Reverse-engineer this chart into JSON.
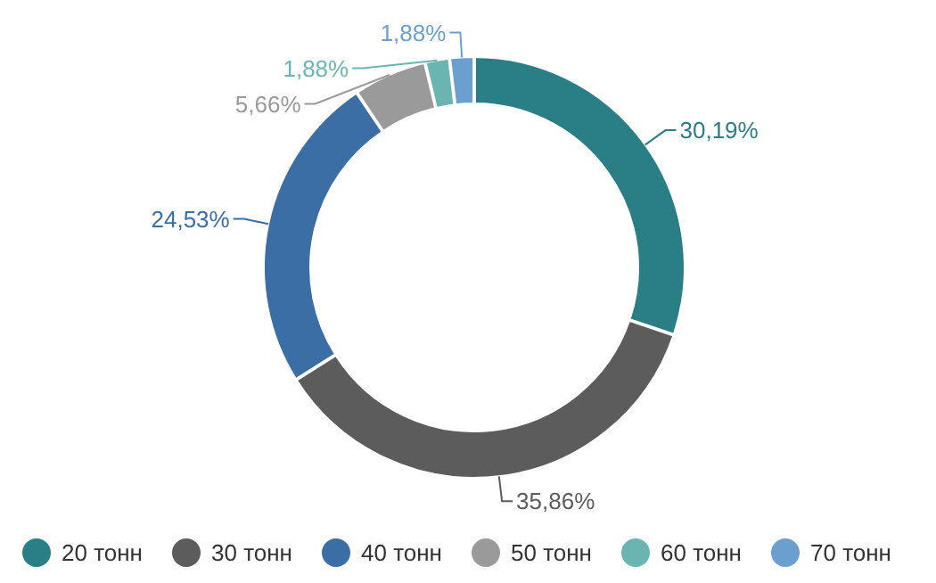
{
  "chart_data": {
    "type": "donut",
    "categories": [
      "20 тонн",
      "30 тонн",
      "40 тонн",
      "50 тонн",
      "60 тонн",
      "70 тонн"
    ],
    "values": [
      30.19,
      35.86,
      24.53,
      5.66,
      1.88,
      1.88
    ],
    "value_labels": [
      "30,19%",
      "35,86%",
      "24,53%",
      "5,66%",
      "1,88%",
      "1,88%"
    ],
    "colors": [
      "#2a7f86",
      "#5c5c5c",
      "#3a6ea5",
      "#9a9a9a",
      "#6ab5b2",
      "#6a9fcf"
    ],
    "legend": "bottom"
  }
}
